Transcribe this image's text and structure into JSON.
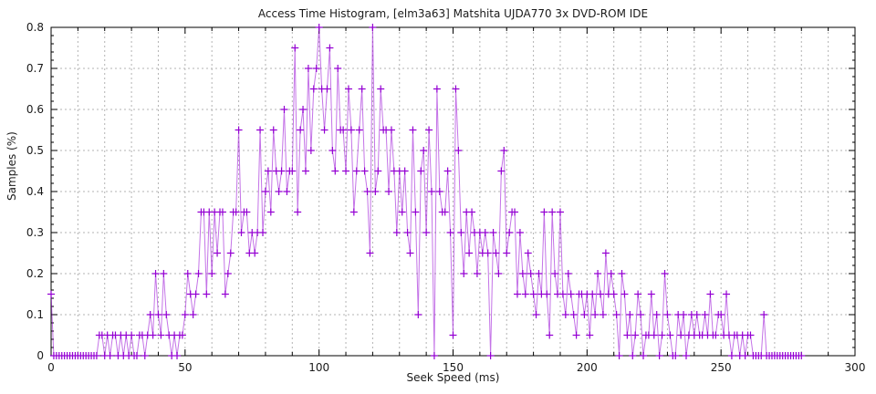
{
  "chart": {
    "title": "Access Time Histogram, [elm3a63] Matshita UJDA770 3x DVD-ROM IDE",
    "xlabel": "Seek Speed (ms)",
    "ylabel": "Samples (%)"
  },
  "chart_data": {
    "type": "line",
    "title": "Access Time Histogram, [elm3a63] Matshita UJDA770 3x DVD-ROM IDE",
    "xlabel": "Seek Speed (ms)",
    "ylabel": "Samples (%)",
    "xlim": [
      0,
      300
    ],
    "ylim": [
      0,
      0.8
    ],
    "x_ticks": [
      0,
      50,
      100,
      150,
      200,
      250,
      300
    ],
    "y_tick_labels": [
      "0",
      "0.1",
      "0.2",
      "0.3",
      "0.4",
      "0.5",
      "0.6",
      "0.7",
      "0.8"
    ],
    "x_minor_step": 10,
    "y_minor_step": 0.02,
    "grid": true,
    "legend": "none",
    "marker": "plus",
    "colors": {
      "series": "#9400d3",
      "grid": "#b3b3b3",
      "axis": "#000000",
      "background": "#ffffff",
      "text": "#1a1a1a"
    },
    "x_start": 0,
    "x_step": 1,
    "values": [
      0.15,
      0,
      0,
      0,
      0,
      0,
      0,
      0,
      0,
      0,
      0,
      0,
      0,
      0,
      0,
      0,
      0,
      0,
      0.05,
      0.05,
      0,
      0.05,
      0,
      0.05,
      0.05,
      0,
      0.05,
      0,
      0.05,
      0,
      0.05,
      0,
      0,
      0.05,
      0.05,
      0,
      0.05,
      0.1,
      0.05,
      0.2,
      0.1,
      0.05,
      0.2,
      0.1,
      0.05,
      0,
      0.05,
      0,
      0.05,
      0.05,
      0.1,
      0.2,
      0.15,
      0.1,
      0.15,
      0.2,
      0.35,
      0.35,
      0.15,
      0.35,
      0.2,
      0.35,
      0.25,
      0.35,
      0.35,
      0.15,
      0.2,
      0.25,
      0.35,
      0.35,
      0.55,
      0.3,
      0.35,
      0.35,
      0.25,
      0.3,
      0.25,
      0.3,
      0.55,
      0.3,
      0.4,
      0.45,
      0.35,
      0.55,
      0.45,
      0.4,
      0.45,
      0.6,
      0.4,
      0.45,
      0.45,
      0.75,
      0.35,
      0.55,
      0.6,
      0.45,
      0.7,
      0.5,
      0.65,
      0.7,
      0.8,
      0.65,
      0.55,
      0.65,
      0.75,
      0.5,
      0.45,
      0.7,
      0.55,
      0.55,
      0.45,
      0.65,
      0.55,
      0.35,
      0.45,
      0.55,
      0.65,
      0.45,
      0.4,
      0.25,
      0.8,
      0.4,
      0.45,
      0.65,
      0.55,
      0.55,
      0.4,
      0.55,
      0.45,
      0.3,
      0.45,
      0.35,
      0.45,
      0.3,
      0.25,
      0.55,
      0.35,
      0.1,
      0.45,
      0.5,
      0.3,
      0.55,
      0.4,
      0,
      0.65,
      0.4,
      0.35,
      0.35,
      0.45,
      0.3,
      0.05,
      0.65,
      0.5,
      0.3,
      0.2,
      0.35,
      0.25,
      0.35,
      0.3,
      0.2,
      0.3,
      0.25,
      0.3,
      0.25,
      0,
      0.3,
      0.25,
      0.2,
      0.45,
      0.5,
      0.25,
      0.3,
      0.35,
      0.35,
      0.15,
      0.3,
      0.2,
      0.15,
      0.25,
      0.2,
      0.15,
      0.1,
      0.2,
      0.15,
      0.35,
      0.15,
      0.05,
      0.35,
      0.2,
      0.15,
      0.35,
      0.15,
      0.1,
      0.2,
      0.15,
      0.1,
      0.05,
      0.15,
      0.15,
      0.1,
      0.15,
      0.05,
      0.15,
      0.1,
      0.2,
      0.15,
      0.1,
      0.25,
      0.15,
      0.2,
      0.15,
      0.1,
      0,
      0.2,
      0.15,
      0.05,
      0.1,
      0,
      0.05,
      0.15,
      0.1,
      0,
      0.05,
      0.05,
      0.15,
      0.05,
      0.1,
      0,
      0.05,
      0.2,
      0.1,
      0.05,
      0,
      0,
      0.1,
      0.05,
      0.1,
      0,
      0.05,
      0.1,
      0.05,
      0.1,
      0.05,
      0.05,
      0.1,
      0.05,
      0.15,
      0.05,
      0.05,
      0.1,
      0.1,
      0.05,
      0.15,
      0.05,
      0,
      0.05,
      0.05,
      0,
      0.05,
      0,
      0.05,
      0.05,
      0,
      0,
      0,
      0,
      0.1,
      0,
      0,
      0,
      0,
      0,
      0,
      0,
      0,
      0,
      0,
      0,
      0,
      0,
      0
    ]
  }
}
